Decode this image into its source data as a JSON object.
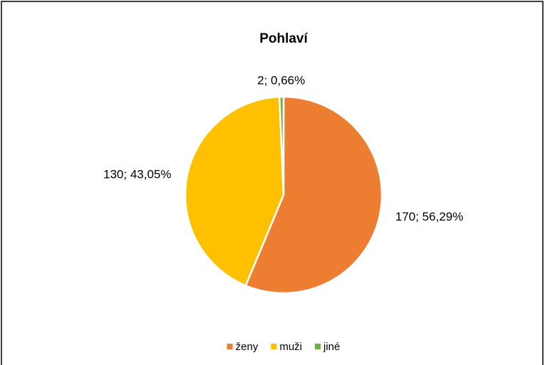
{
  "chart_data": {
    "type": "pie",
    "title": "Pohlaví",
    "categories": [
      "ženy",
      "muži",
      "jiné"
    ],
    "values": [
      170,
      130,
      2
    ],
    "value_labels": [
      "170; 56,29%",
      "130; 43,05%",
      "2; 0,66%"
    ],
    "colors": [
      "#ED7D31",
      "#FFC000",
      "#70AD47"
    ],
    "legend": "bottom"
  }
}
